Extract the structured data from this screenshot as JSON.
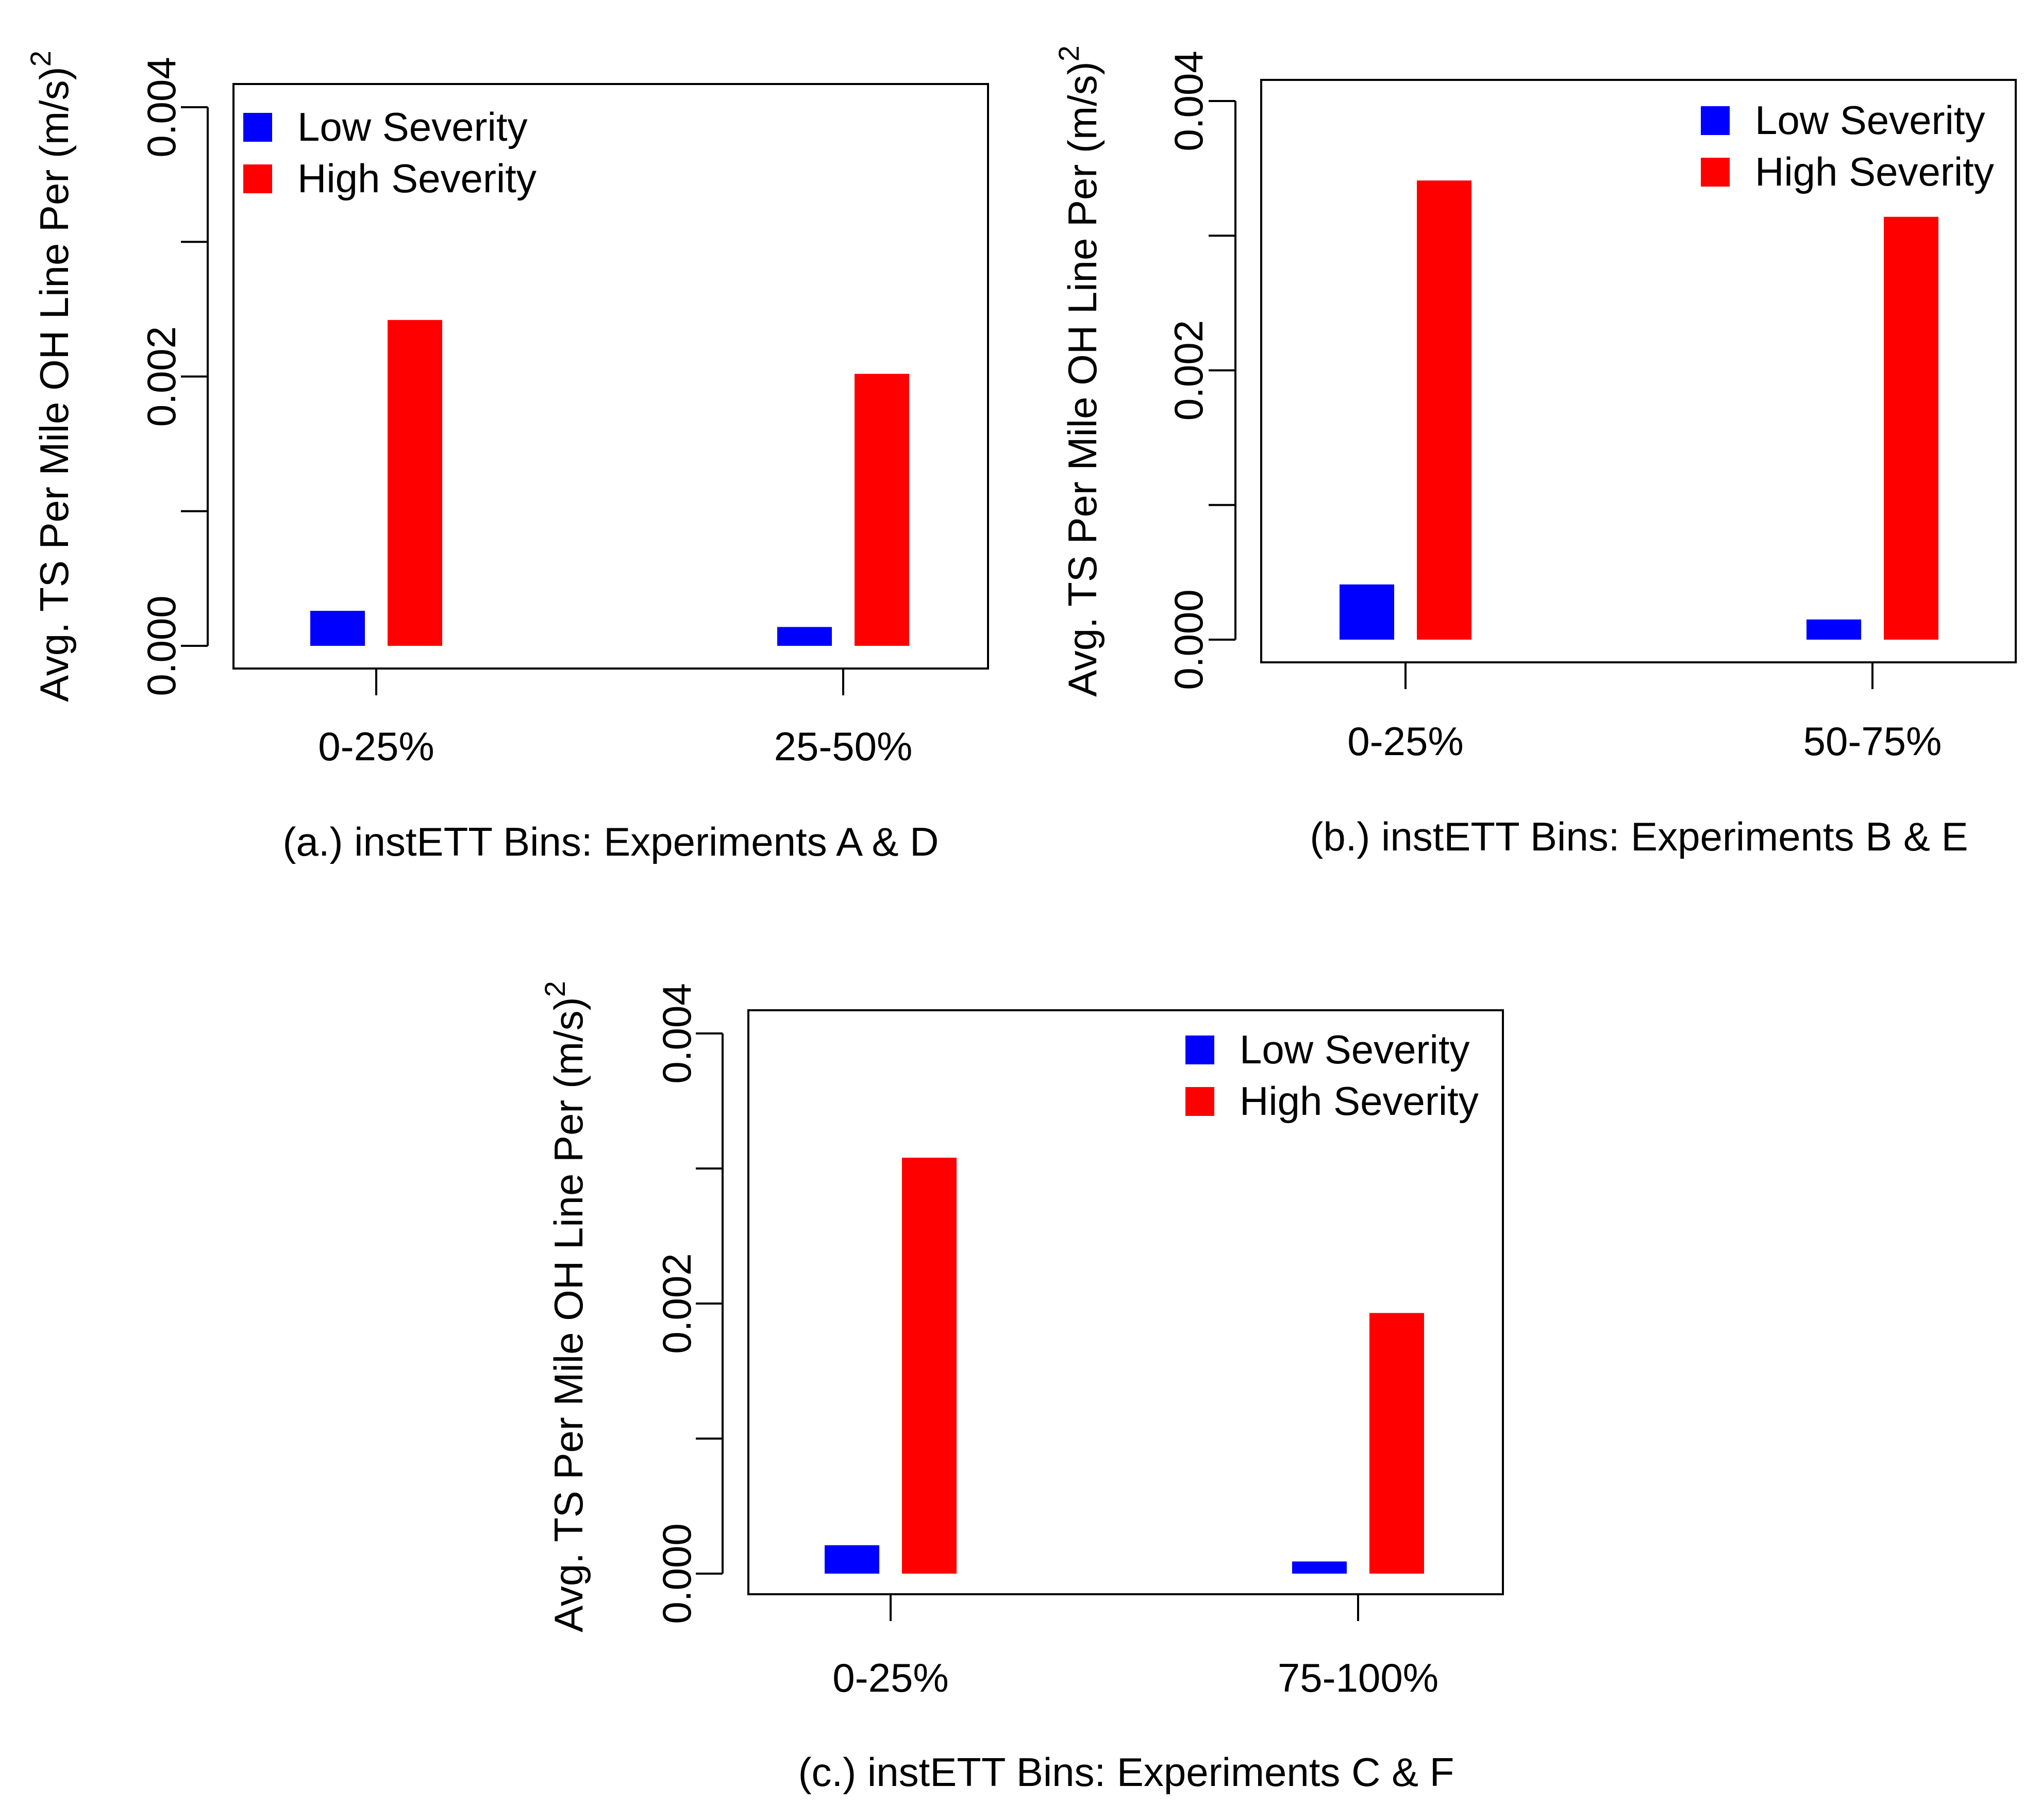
{
  "figure": {
    "legend_labels": [
      "Low Severity",
      "High Severity"
    ],
    "colors": {
      "low": "#0000ff",
      "high": "#ff0000",
      "axis": "#000000"
    }
  },
  "chart_data": [
    {
      "type": "bar",
      "caption": "(a.) instETT Bins: Experiments A & D",
      "categories": [
        "0-25%",
        "25-50%"
      ],
      "series": [
        {
          "name": "Low Severity",
          "color": "#0000ff",
          "values": [
            0.00026,
            0.00014
          ]
        },
        {
          "name": "High Severity",
          "color": "#ff0000",
          "values": [
            0.00242,
            0.00202
          ]
        }
      ],
      "ylabel": "Avg. TS Per Mile OH Line Per (m/s)",
      "ylabel_sup": "2",
      "ylim": [
        -0.00033,
        0.0041
      ],
      "yticks": [
        0.0,
        0.001,
        0.002,
        0.003,
        0.004
      ],
      "ytick_labels": [
        "0.000",
        "",
        "0.002",
        "",
        "0.004"
      ],
      "legend_position": "top-left",
      "grid": false
    },
    {
      "type": "bar",
      "caption": "(b.) instETT Bins: Experiments B & E",
      "categories": [
        "0-25%",
        "50-75%"
      ],
      "series": [
        {
          "name": "Low Severity",
          "color": "#0000ff",
          "values": [
            0.00041,
            0.00015
          ]
        },
        {
          "name": "High Severity",
          "color": "#ff0000",
          "values": [
            0.00341,
            0.00314
          ]
        }
      ],
      "ylabel": "Avg. TS Per Mile OH Line Per (m/s)",
      "ylabel_sup": "2",
      "ylim": [
        -0.00016,
        0.0041
      ],
      "yticks": [
        0.0,
        0.001,
        0.002,
        0.003,
        0.004
      ],
      "ytick_labels": [
        "0.000",
        "",
        "0.002",
        "",
        "0.004"
      ],
      "legend_position": "top-right",
      "grid": false
    },
    {
      "type": "bar",
      "caption": "(c.) instETT Bins: Experiments C & F",
      "categories": [
        "0-25%",
        "75-100%"
      ],
      "series": [
        {
          "name": "Low Severity",
          "color": "#0000ff",
          "values": [
            0.00021,
            9e-05
          ]
        },
        {
          "name": "High Severity",
          "color": "#ff0000",
          "values": [
            0.00308,
            0.00193
          ]
        }
      ],
      "ylabel": "Avg. TS Per Mile OH Line Per (m/s)",
      "ylabel_sup": "2",
      "ylim": [
        -0.00016,
        0.0042
      ],
      "yticks": [
        0.0,
        0.001,
        0.002,
        0.003,
        0.004
      ],
      "ytick_labels": [
        "0.000",
        "",
        "0.002",
        "",
        "0.004"
      ],
      "legend_position": "top-right",
      "grid": false
    }
  ]
}
